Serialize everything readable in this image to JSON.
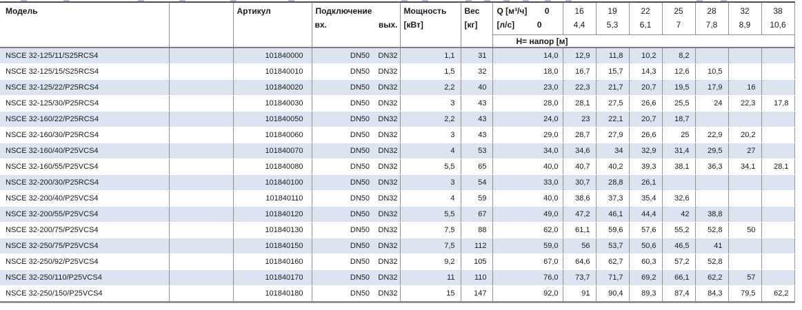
{
  "header": {
    "model": "Модель",
    "article": "Артикул",
    "connection": "Подключение",
    "inlet": "вх.",
    "outlet": "вых.",
    "power_line1": "Мощность",
    "power_line2": "[кВт]",
    "weight_line1": "Вес",
    "weight_line2": "[кг]",
    "flow_m3h_label": "Q [м³/ч]",
    "flow_m3h_zero": "0",
    "flow_ls_label": "[л/с]",
    "flow_ls_zero": "0",
    "flow_columns": [
      {
        "m3h": "16",
        "ls": "4,4"
      },
      {
        "m3h": "19",
        "ls": "5,3"
      },
      {
        "m3h": "22",
        "ls": "6,1"
      },
      {
        "m3h": "25",
        "ls": "7"
      },
      {
        "m3h": "28",
        "ls": "7,8"
      },
      {
        "m3h": "32",
        "ls": "8,9"
      },
      {
        "m3h": "38",
        "ls": "10,6"
      }
    ],
    "head_label": "Н= напор [м]"
  },
  "rows": [
    {
      "model": "NSCE 32-125/11/S25RCS4",
      "article": "101840000",
      "dn_in": "DN50",
      "dn_out": "DN32",
      "power": "1,1",
      "weight": "31",
      "head": [
        "14,0",
        "12,9",
        "11,8",
        "10,2",
        "8,2",
        "",
        "",
        ""
      ]
    },
    {
      "model": "NSCE 32-125/15/S25RCS4",
      "article": "101840010",
      "dn_in": "DN50",
      "dn_out": "DN32",
      "power": "1,5",
      "weight": "32",
      "head": [
        "18,0",
        "16,7",
        "15,7",
        "14,3",
        "12,6",
        "10,5",
        "",
        ""
      ]
    },
    {
      "model": "NSCE 32-125/22/P25RCS4",
      "article": "101840020",
      "dn_in": "DN50",
      "dn_out": "DN32",
      "power": "2,2",
      "weight": "40",
      "head": [
        "23,0",
        "22,3",
        "21,7",
        "20,7",
        "19,5",
        "17,9",
        "16",
        ""
      ]
    },
    {
      "model": "NSCE 32-125/30/P25RCS4",
      "article": "101840030",
      "dn_in": "DN50",
      "dn_out": "DN32",
      "power": "3",
      "weight": "43",
      "head": [
        "28,0",
        "28,1",
        "27,5",
        "26,6",
        "25,5",
        "24",
        "22,3",
        "17,8"
      ]
    },
    {
      "model": "NSCE 32-160/22/P25RCS4",
      "article": "101840050",
      "dn_in": "DN50",
      "dn_out": "DN32",
      "power": "2,2",
      "weight": "43",
      "head": [
        "24,0",
        "23",
        "22,1",
        "20,7",
        "18,7",
        "",
        "",
        ""
      ]
    },
    {
      "model": "NSCE 32-160/30/P25RCS4",
      "article": "101840060",
      "dn_in": "DN50",
      "dn_out": "DN32",
      "power": "3",
      "weight": "43",
      "head": [
        "29,0",
        "28,7",
        "27,9",
        "26,6",
        "25",
        "22,9",
        "20,2",
        ""
      ]
    },
    {
      "model": "NSCE 32-160/40/P25VCS4",
      "article": "101840070",
      "dn_in": "DN50",
      "dn_out": "DN32",
      "power": "4",
      "weight": "53",
      "head": [
        "34,0",
        "34,6",
        "34",
        "32,9",
        "31,4",
        "29,5",
        "27",
        ""
      ]
    },
    {
      "model": "NSCE 32-160/55/P25VCS4",
      "article": "101840080",
      "dn_in": "DN50",
      "dn_out": "DN32",
      "power": "5,5",
      "weight": "65",
      "head": [
        "40,0",
        "40,7",
        "40,2",
        "39,3",
        "38,1",
        "36,3",
        "34,1",
        "28,1"
      ]
    },
    {
      "model": "NSCE 32-200/30/P25RCS4",
      "article": "101840100",
      "dn_in": "DN50",
      "dn_out": "DN32",
      "power": "3",
      "weight": "54",
      "head": [
        "33,0",
        "30,7",
        "28,8",
        "26,1",
        "",
        "",
        "",
        ""
      ]
    },
    {
      "model": "NSCE 32-200/40/P25VCS4",
      "article": "101840110",
      "dn_in": "DN50",
      "dn_out": "DN32",
      "power": "4",
      "weight": "59",
      "head": [
        "40,0",
        "38,6",
        "37,3",
        "35,4",
        "32,6",
        "",
        "",
        ""
      ]
    },
    {
      "model": "NSCE 32-200/55/P25VCS4",
      "article": "101840120",
      "dn_in": "DN50",
      "dn_out": "DN32",
      "power": "5,5",
      "weight": "67",
      "head": [
        "49,0",
        "47,2",
        "46,1",
        "44,4",
        "42",
        "38,8",
        "",
        ""
      ]
    },
    {
      "model": "NSCE 32-200/75/P25VCS4",
      "article": "101840130",
      "dn_in": "DN50",
      "dn_out": "DN32",
      "power": "7,5",
      "weight": "88",
      "head": [
        "62,0",
        "61,1",
        "59,6",
        "57,6",
        "55,2",
        "52,8",
        "50",
        ""
      ]
    },
    {
      "model": "NSCE 32-250/75/P25VCS4",
      "article": "101840150",
      "dn_in": "DN50",
      "dn_out": "DN32",
      "power": "7,5",
      "weight": "112",
      "head": [
        "59,0",
        "56",
        "53,7",
        "50,6",
        "46,5",
        "41",
        "",
        ""
      ]
    },
    {
      "model": "NSCE 32-250/92/P25VCS4",
      "article": "101840160",
      "dn_in": "DN50",
      "dn_out": "DN32",
      "power": "9,2",
      "weight": "105",
      "head": [
        "67,0",
        "64,6",
        "62,7",
        "60,3",
        "57,2",
        "52,8",
        "",
        ""
      ]
    },
    {
      "model": "NSCE 32-250/110/P25VCS4",
      "article": "101840170",
      "dn_in": "DN50",
      "dn_out": "DN32",
      "power": "11",
      "weight": "110",
      "head": [
        "76,0",
        "73,7",
        "71,7",
        "69,2",
        "66,1",
        "62,2",
        "57",
        ""
      ]
    },
    {
      "model": "NSCE 32-250/150/P25VCS4",
      "article": "101840180",
      "dn_in": "DN50",
      "dn_out": "DN32",
      "power": "15",
      "weight": "147",
      "head": [
        "92,0",
        "91",
        "90,4",
        "89,3",
        "87,4",
        "84,3",
        "79,5",
        "62,2"
      ]
    }
  ],
  "colors": {
    "row_alt": "#dbe4f0",
    "grid_line": "#8f8f8f",
    "heavy_rule": "#7d7d7d",
    "top_rule": "#4e4e4e"
  }
}
